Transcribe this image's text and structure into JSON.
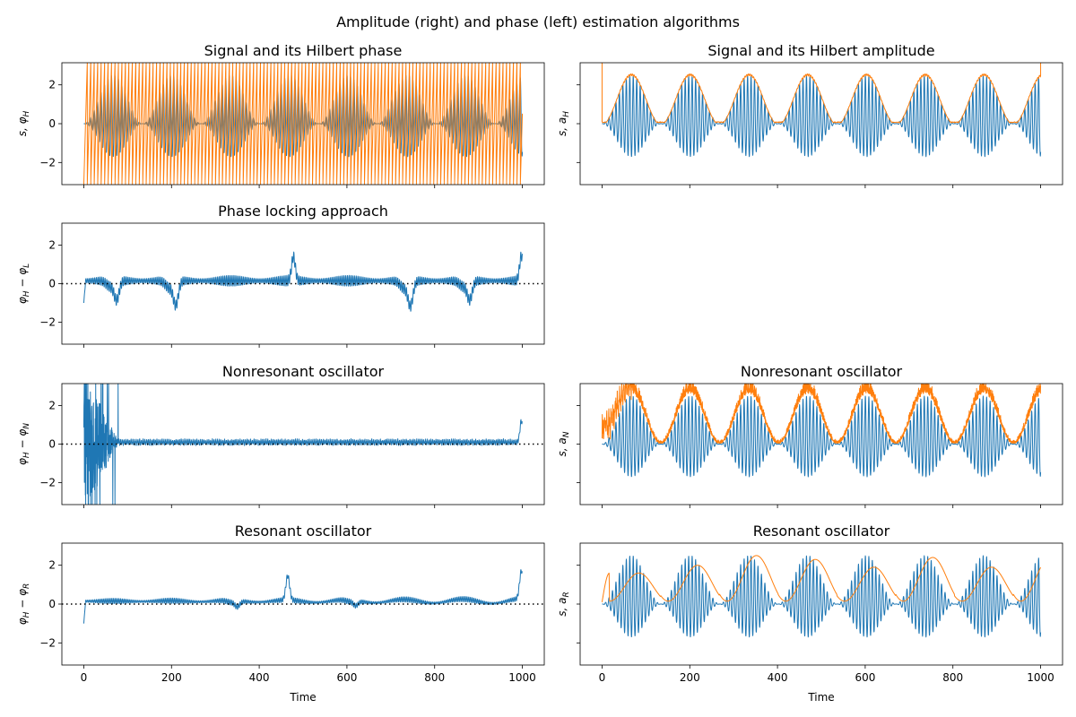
{
  "figure": {
    "suptitle": "Amplitude (right) and phase (left) estimation algorithms",
    "xlabel": "Time"
  },
  "colors": {
    "signal": "#1f77b4",
    "estimate": "#ff7f0e",
    "frame": "#000000",
    "zero_line": "#000000"
  },
  "chart_data": [
    {
      "id": "signal_phase",
      "type": "line",
      "title": "Signal and its Hilbert phase",
      "ylabel": {
        "main": "s, φ",
        "sub": "H"
      },
      "xlim": [
        -50,
        1050
      ],
      "ylim": [
        -3.14,
        3.14
      ],
      "xticks": [
        0,
        200,
        400,
        600,
        800,
        1000
      ],
      "yticks": [
        -2,
        0,
        2
      ],
      "show_xticklabels": false,
      "show_yticklabels": true,
      "zero_line": false,
      "series": [
        {
          "kind": "signal",
          "x_range": [
            0,
            1000
          ],
          "carrier_period": 7.9,
          "envelope_period": 134,
          "envelope_amp": [
            0,
            2.5
          ]
        },
        {
          "kind": "phase_wrap",
          "x_range": [
            0,
            1000
          ],
          "period": 7.9,
          "range": [
            -3.14,
            3.14
          ]
        }
      ]
    },
    {
      "id": "signal_amplitude",
      "type": "line",
      "title": "Signal and its Hilbert amplitude",
      "ylabel": {
        "main": "s, a",
        "sub": "H"
      },
      "xlim": [
        -50,
        1050
      ],
      "ylim": [
        -3.14,
        3.14
      ],
      "xticks": [
        0,
        200,
        400,
        600,
        800,
        1000
      ],
      "yticks": [
        -2,
        0,
        2
      ],
      "show_xticklabels": false,
      "show_yticklabels": false,
      "zero_line": false,
      "series": [
        {
          "kind": "signal",
          "x_range": [
            0,
            1000
          ],
          "carrier_period": 7.9,
          "envelope_period": 134,
          "envelope_amp": [
            0,
            2.5
          ]
        },
        {
          "kind": "envelope",
          "x_range": [
            0,
            1000
          ],
          "envelope_period": 134,
          "envelope_amp": [
            0,
            2.5
          ],
          "ripple": 0.12,
          "edge_spikes": true
        }
      ]
    },
    {
      "id": "phase_locking",
      "type": "line",
      "title": "Phase locking approach",
      "ylabel": {
        "main": "φ",
        "sub": "H",
        "main2": " − φ",
        "sub2": "L"
      },
      "xlim": [
        -50,
        1050
      ],
      "ylim": [
        -3.14,
        3.14
      ],
      "xticks": [
        0,
        200,
        400,
        600,
        800,
        1000
      ],
      "yticks": [
        -2,
        0,
        2
      ],
      "show_xticklabels": false,
      "show_yticklabels": true,
      "zero_line": true,
      "series": [
        {
          "kind": "phase_error",
          "x_range": [
            0,
            1000
          ],
          "osc_amp": 0.28,
          "dips": [
            [
              75,
              -0.95
            ],
            [
              210,
              -1.2
            ],
            [
              745,
              -1.25
            ],
            [
              880,
              -0.95
            ]
          ],
          "peaks": [
            [
              478,
              1.25
            ],
            [
              998,
              1.3
            ]
          ],
          "start": -1.0
        }
      ]
    },
    {
      "id": "nonresonant_phase",
      "type": "line",
      "title": "Nonresonant oscillator",
      "ylabel": {
        "main": "φ",
        "sub": "H",
        "main2": " − φ",
        "sub2": "N"
      },
      "xlim": [
        -50,
        1050
      ],
      "ylim": [
        -3.14,
        3.14
      ],
      "xticks": [
        0,
        200,
        400,
        600,
        800,
        1000
      ],
      "yticks": [
        -2,
        0,
        2
      ],
      "show_xticklabels": false,
      "show_yticklabels": true,
      "zero_line": true,
      "series": [
        {
          "kind": "phase_error_noisy",
          "x_range": [
            0,
            1000
          ],
          "osc_amp": 0.12,
          "transient_until": 80,
          "peaks": [
            [
              998,
              1.1
            ]
          ]
        }
      ]
    },
    {
      "id": "nonresonant_amplitude",
      "type": "line",
      "title": "Nonresonant oscillator",
      "ylabel": {
        "main": "s, a",
        "sub": "N"
      },
      "xlim": [
        -50,
        1050
      ],
      "ylim": [
        -3.14,
        3.14
      ],
      "xticks": [
        0,
        200,
        400,
        600,
        800,
        1000
      ],
      "yticks": [
        -2,
        0,
        2
      ],
      "show_xticklabels": false,
      "show_yticklabels": false,
      "zero_line": false,
      "series": [
        {
          "kind": "signal",
          "x_range": [
            0,
            1000
          ],
          "carrier_period": 7.9,
          "envelope_period": 134,
          "envelope_amp": [
            0,
            2.5
          ]
        },
        {
          "kind": "envelope_noisy",
          "x_range": [
            0,
            1000
          ],
          "envelope_period": 134,
          "envelope_amp": [
            0,
            2.5
          ],
          "ripple": 0.55,
          "transient_until": 70
        }
      ]
    },
    {
      "id": "resonant_phase",
      "type": "line",
      "title": "Resonant oscillator",
      "ylabel": {
        "main": "φ",
        "sub": "H",
        "main2": " − φ",
        "sub2": "R"
      },
      "xlim": [
        -50,
        1050
      ],
      "ylim": [
        -3.14,
        3.14
      ],
      "xticks": [
        0,
        200,
        400,
        600,
        800,
        1000
      ],
      "yticks": [
        -2,
        0,
        2
      ],
      "show_xticklabels": true,
      "show_yticklabels": true,
      "zero_line": true,
      "series": [
        {
          "kind": "phase_error",
          "x_range": [
            0,
            1000
          ],
          "osc_amp": 0.14,
          "dips": [
            [
              350,
              -0.3
            ],
            [
              620,
              -0.25
            ]
          ],
          "peaks": [
            [
              465,
              1.25
            ],
            [
              998,
              1.45
            ]
          ],
          "start": -1.0,
          "drift": 0.35
        }
      ]
    },
    {
      "id": "resonant_amplitude",
      "type": "line",
      "title": "Resonant oscillator",
      "ylabel": {
        "main": "s, a",
        "sub": "R"
      },
      "xlim": [
        -50,
        1050
      ],
      "ylim": [
        -3.14,
        3.14
      ],
      "xticks": [
        0,
        200,
        400,
        600,
        800,
        1000
      ],
      "yticks": [
        -2,
        0,
        2
      ],
      "show_xticklabels": true,
      "show_yticklabels": false,
      "zero_line": false,
      "series": [
        {
          "kind": "signal",
          "x_range": [
            0,
            1000
          ],
          "carrier_period": 7.9,
          "envelope_period": 134,
          "envelope_amp": [
            0,
            2.5
          ]
        },
        {
          "kind": "envelope_smooth",
          "x_range": [
            0,
            1000
          ],
          "envelope_period": 134,
          "peak_values": [
            1.6,
            2.0,
            2.5,
            2.3,
            1.9,
            2.4,
            1.9,
            2.45
          ]
        }
      ]
    }
  ]
}
